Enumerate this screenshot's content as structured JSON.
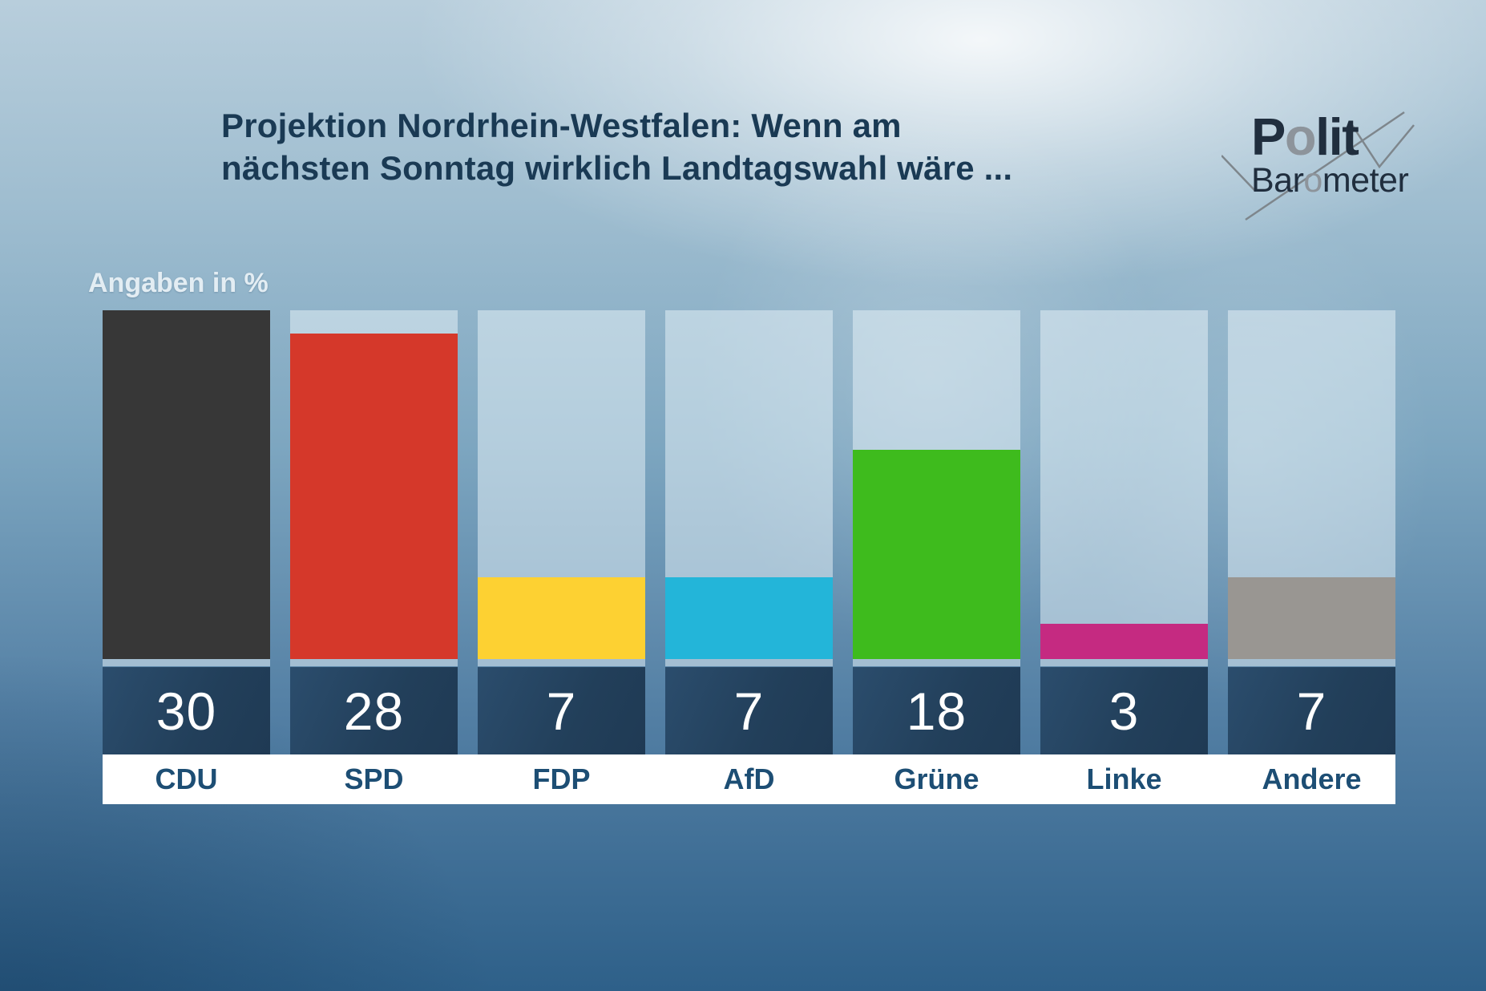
{
  "header": {
    "title_line1": "Projektion Nordrhein-Westfalen: Wenn am",
    "title_line2": "nächsten Sonntag wirklich Landtagswahl wäre ..."
  },
  "logo": {
    "word1": {
      "pre": "P",
      "o": "o",
      "post": "lit"
    },
    "word2": {
      "pre": "Bar",
      "o": "o",
      "post": "meter"
    },
    "text_color": "#202e3e",
    "o_color": "#8d949b",
    "checkmark_color": "#7e868c"
  },
  "chart_data": {
    "type": "bar",
    "title": "Projektion Nordrhein-Westfalen: Wenn am nächsten Sonntag wirklich Landtagswahl wäre ...",
    "unit_label": "Angaben in %",
    "categories": [
      "CDU",
      "SPD",
      "FDP",
      "AfD",
      "Grüne",
      "Linke",
      "Andere"
    ],
    "values": [
      30,
      28,
      7,
      7,
      18,
      3,
      7
    ],
    "bar_colors": [
      "#373737",
      "#d5382a",
      "#fdd132",
      "#23b5d9",
      "#3ebb1d",
      "#c52a81",
      "#999692"
    ],
    "ylim": [
      0,
      30
    ],
    "grid": false,
    "legend": false,
    "value_band_color": "#24425f",
    "value_text_color": "#ffffff",
    "label_text_color": "#1d4e74",
    "xlabel": "",
    "ylabel": "Angaben in %"
  }
}
